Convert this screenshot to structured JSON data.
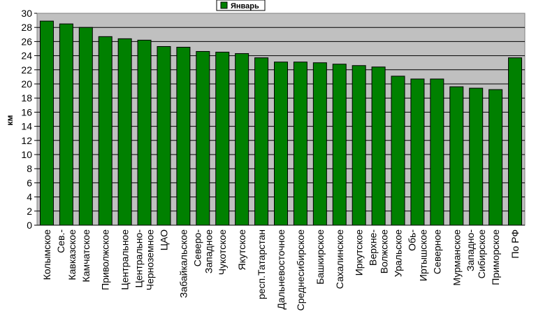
{
  "chart_data": {
    "type": "bar",
    "ylabel": "км",
    "ylim": [
      0,
      30
    ],
    "yticks": [
      0,
      2,
      4,
      6,
      8,
      10,
      12,
      14,
      16,
      18,
      20,
      22,
      24,
      26,
      28,
      30
    ],
    "grid": true,
    "legend_position": "top-center",
    "series": [
      {
        "name": "Январь",
        "color": "#008000",
        "values": [
          28.9,
          28.5,
          28.0,
          26.7,
          26.4,
          26.2,
          25.3,
          25.2,
          24.6,
          24.5,
          24.3,
          23.7,
          23.1,
          23.1,
          23.0,
          22.8,
          22.6,
          22.4,
          21.1,
          20.7,
          20.7,
          19.6,
          19.4,
          19.2,
          23.7
        ]
      }
    ],
    "categories": [
      [
        "Колымское"
      ],
      [
        "Сев.-",
        "Кавказское"
      ],
      [
        "Камчатское"
      ],
      [
        "Приволжское"
      ],
      [
        "Центральное"
      ],
      [
        "Центрально-",
        "Черноземное"
      ],
      [
        "ЦАО"
      ],
      [
        "Забайкальское"
      ],
      [
        "Северо-",
        "Западное"
      ],
      [
        "Чукотское"
      ],
      [
        "Якутское"
      ],
      [
        "респ.Татарстан"
      ],
      [
        "Дальневосточное"
      ],
      [
        "Среднесибирское"
      ],
      [
        "Башкирское"
      ],
      [
        "Сахалинское"
      ],
      [
        "Иркутское"
      ],
      [
        "Верхне-",
        "Волжское"
      ],
      [
        "Уральское"
      ],
      [
        "Обь-",
        "Иртышское"
      ],
      [
        "Северное"
      ],
      [
        "Мурманское"
      ],
      [
        "Западно-",
        "Сибирское"
      ],
      [
        "Приморское"
      ],
      [
        "По РФ"
      ]
    ],
    "colors": {
      "plot_background": "#c0c0c0",
      "bar_fill": "#008000",
      "bar_stroke": "#000000",
      "grid_line": "#000000"
    }
  }
}
